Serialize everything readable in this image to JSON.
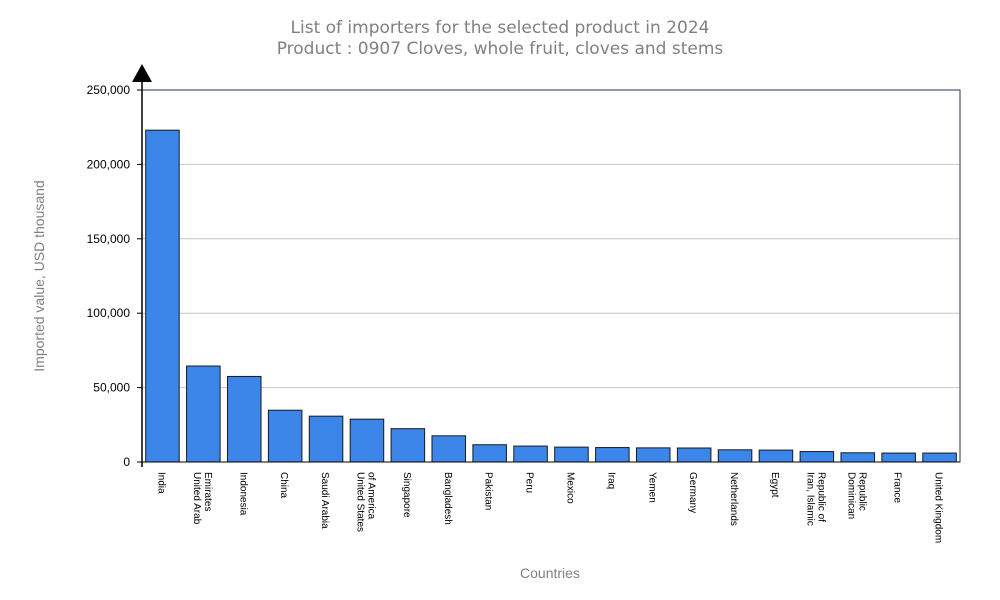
{
  "chart_data": {
    "type": "bar",
    "title": "List of importers for the selected product in 2024",
    "subtitle": "Product : 0907 Cloves, whole fruit, cloves and stems",
    "xlabel": "Countries",
    "ylabel": "Imported value, USD thousand",
    "ylim": [
      0,
      250000
    ],
    "yticks": [
      0,
      50000,
      100000,
      150000,
      200000,
      250000
    ],
    "ytick_labels": [
      "0",
      "50,000",
      "100,000",
      "150,000",
      "200,000",
      "250,000"
    ],
    "grid": true,
    "categories": [
      [
        "India"
      ],
      [
        "United Arab",
        "Emirates"
      ],
      [
        "Indonesia"
      ],
      [
        "China"
      ],
      [
        "Saudi Arabia"
      ],
      [
        "United States",
        "of America"
      ],
      [
        "Singapore"
      ],
      [
        "Bangladesh"
      ],
      [
        "Pakistan"
      ],
      [
        "Peru"
      ],
      [
        "Mexico"
      ],
      [
        "Iraq"
      ],
      [
        "Yemen"
      ],
      [
        "Germany"
      ],
      [
        "Netherlands"
      ],
      [
        "Egypt"
      ],
      [
        "Iran, Islamic",
        "Republic of"
      ],
      [
        "Dominican",
        "Republic"
      ],
      [
        "France"
      ],
      [
        "United Kingdom"
      ]
    ],
    "values": [
      223000,
      64500,
      57500,
      34800,
      30800,
      28800,
      22400,
      17600,
      11600,
      10700,
      10000,
      9700,
      9500,
      9400,
      8200,
      8000,
      7000,
      6200,
      6000,
      6000
    ],
    "colors": {
      "bar": "#3b86e8",
      "bar_stroke": "#1a1a1a",
      "grid": "#c8c8c8",
      "axis": "#000000",
      "frame": "#1f3a5f"
    }
  }
}
